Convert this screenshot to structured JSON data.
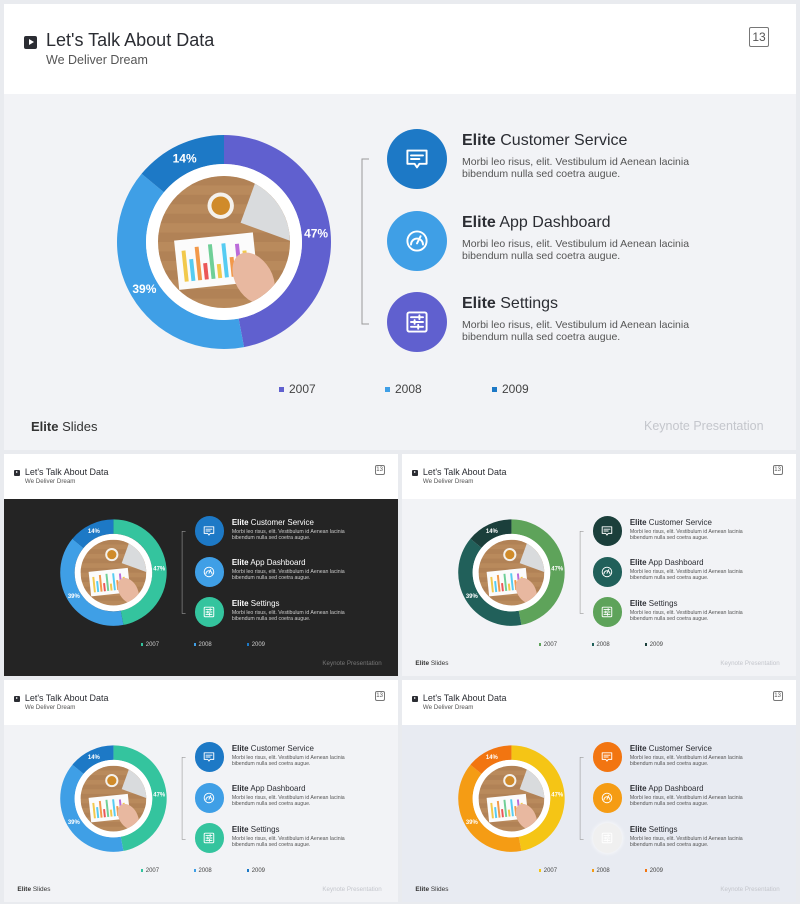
{
  "slide_number": "13",
  "title": "Let's Talk About Data",
  "subtitle": "We Deliver Dream",
  "features": [
    {
      "bold": "Elite",
      "rest": " Customer Service",
      "desc": "Morbi leo risus, elit. Vestibulum id Aenean lacinia bibendum nulla sed coetra augue.",
      "icon": "message-icon"
    },
    {
      "bold": "Elite",
      "rest": " App Dashboard",
      "desc": "Morbi leo risus, elit. Vestibulum id Aenean lacinia bibendum nulla sed coetra augue.",
      "icon": "gauge-icon"
    },
    {
      "bold": "Elite",
      "rest": " Settings",
      "desc": "Morbi leo risus, elit. Vestibulum id Aenean lacinia bibendum nulla sed coetra augue.",
      "icon": "sliders-icon"
    }
  ],
  "legend": [
    "2007",
    "2008",
    "2009"
  ],
  "brand_bold": "Elite",
  "brand_rest": " Slides",
  "footer_right": "Keynote Presentation",
  "chart_data": {
    "type": "pie",
    "categories": [
      "2007",
      "2008",
      "2009"
    ],
    "values": [
      47,
      39,
      14
    ],
    "labels": [
      "47%",
      "39%",
      "14%"
    ]
  },
  "variants": [
    {
      "name": "blue-purple",
      "bg": "#f2f3f6",
      "slices": [
        "#6060cf",
        "#3f9fe6",
        "#1d79c6"
      ],
      "icons": [
        "#1d79c6",
        "#3f9fe6",
        "#6060cf"
      ],
      "legend": [
        "#6060cf",
        "#3f9fe6",
        "#1d79c6"
      ],
      "text": "#444"
    },
    {
      "name": "dark-green",
      "bg": "#242424",
      "slices": [
        "#34c49e",
        "#3f9fe6",
        "#1d79c6"
      ],
      "icons": [
        "#1d79c6",
        "#3f9fe6",
        "#34c49e"
      ],
      "legend": [
        "#34c49e",
        "#3f9fe6",
        "#1d79c6"
      ],
      "text": "#ddd"
    },
    {
      "name": "forest",
      "bg": "#f2f3f6",
      "slices": [
        "#5ea35a",
        "#21605a",
        "#1b3f3b"
      ],
      "icons": [
        "#1b3f3b",
        "#21605a",
        "#5ea35a"
      ],
      "legend": [
        "#5ea35a",
        "#21605a",
        "#1b3f3b"
      ],
      "text": "#444"
    },
    {
      "name": "mint",
      "bg": "#f2f3f6",
      "slices": [
        "#34c49e",
        "#3f9fe6",
        "#1d79c6"
      ],
      "icons": [
        "#1d79c6",
        "#3f9fe6",
        "#34c49e"
      ],
      "legend": [
        "#34c49e",
        "#3f9fe6",
        "#1d79c6"
      ],
      "text": "#444"
    },
    {
      "name": "orange",
      "bg": "#e8ebf2",
      "slices": [
        "#f5c515",
        "#f59c14",
        "#f27511"
      ],
      "icons": [
        "#f27511",
        "#f59c14",
        "#f0f0f0"
      ],
      "legend": [
        "#f5c515",
        "#f59c14",
        "#f27511"
      ],
      "text": "#444"
    }
  ]
}
